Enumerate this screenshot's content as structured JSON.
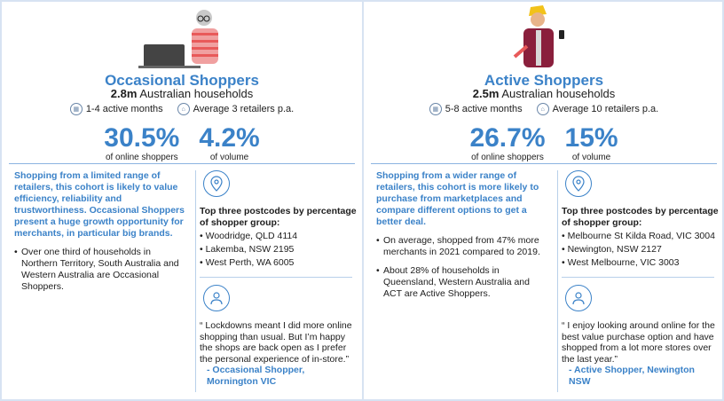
{
  "occasional": {
    "title": "Occasional Shoppers",
    "households_value": "2.8m",
    "households_label": "Australian households",
    "tag1": "1-4 active months",
    "tag2": "Average 3 retailers p.a.",
    "stat1_value": "30.5%",
    "stat1_label": "of online shoppers",
    "stat2_value": "4.2%",
    "stat2_label": "of volume",
    "intro": "Shopping from a limited range of retailers, this cohort is likely to value efficiency, reliability and trustworthiness. Occasional Shoppers present a huge growth opportunity for merchants, in particular big brands.",
    "bullets": [
      "Over one third of households in Northern Territory, South Australia and Western Australia are Occasional Shoppers."
    ],
    "postcode_title": "Top three postcodes by percentage of shopper group:",
    "postcodes": [
      "Woodridge, QLD 4114",
      "Lakemba, NSW 2195",
      "West Perth, WA 6005"
    ],
    "quote": "“ Lockdowns meant I did more online shopping than usual. But I’m happy the shops are back open as I prefer the personal experience of in-store.”",
    "attribution": "- Occasional Shopper, Mornington VIC"
  },
  "active": {
    "title": "Active Shoppers",
    "households_value": "2.5m",
    "households_label": "Australian households",
    "tag1": "5-8 active months",
    "tag2": "Average 10 retailers p.a.",
    "stat1_value": "26.7%",
    "stat1_label": "of online shoppers",
    "stat2_value": "15%",
    "stat2_label": "of volume",
    "intro": "Shopping from a wider range of retailers, this cohort is more likely to purchase from marketplaces and compare different options to get a better deal.",
    "bullets": [
      "On average, shopped from 47% more merchants in 2021 compared to 2019.",
      "About 28% of households in Queensland, Western Australia and ACT are Active Shoppers."
    ],
    "postcode_title": "Top three postcodes by percentage of shopper group:",
    "postcodes": [
      "Melbourne St Kilda Road, VIC 3004",
      "Newington, NSW 2127",
      "West Melbourne, VIC 3003"
    ],
    "quote": "“ I enjoy looking around online for the best value purchase option and have shopped from a lot more stores over the last year.”",
    "attribution": "- Active Shopper, Newington NSW"
  },
  "colors": {
    "accent": "#3b82c8",
    "border": "#d7e3f2"
  },
  "icons": [
    "calendar-icon",
    "store-icon",
    "location-pin-icon",
    "user-icon"
  ]
}
